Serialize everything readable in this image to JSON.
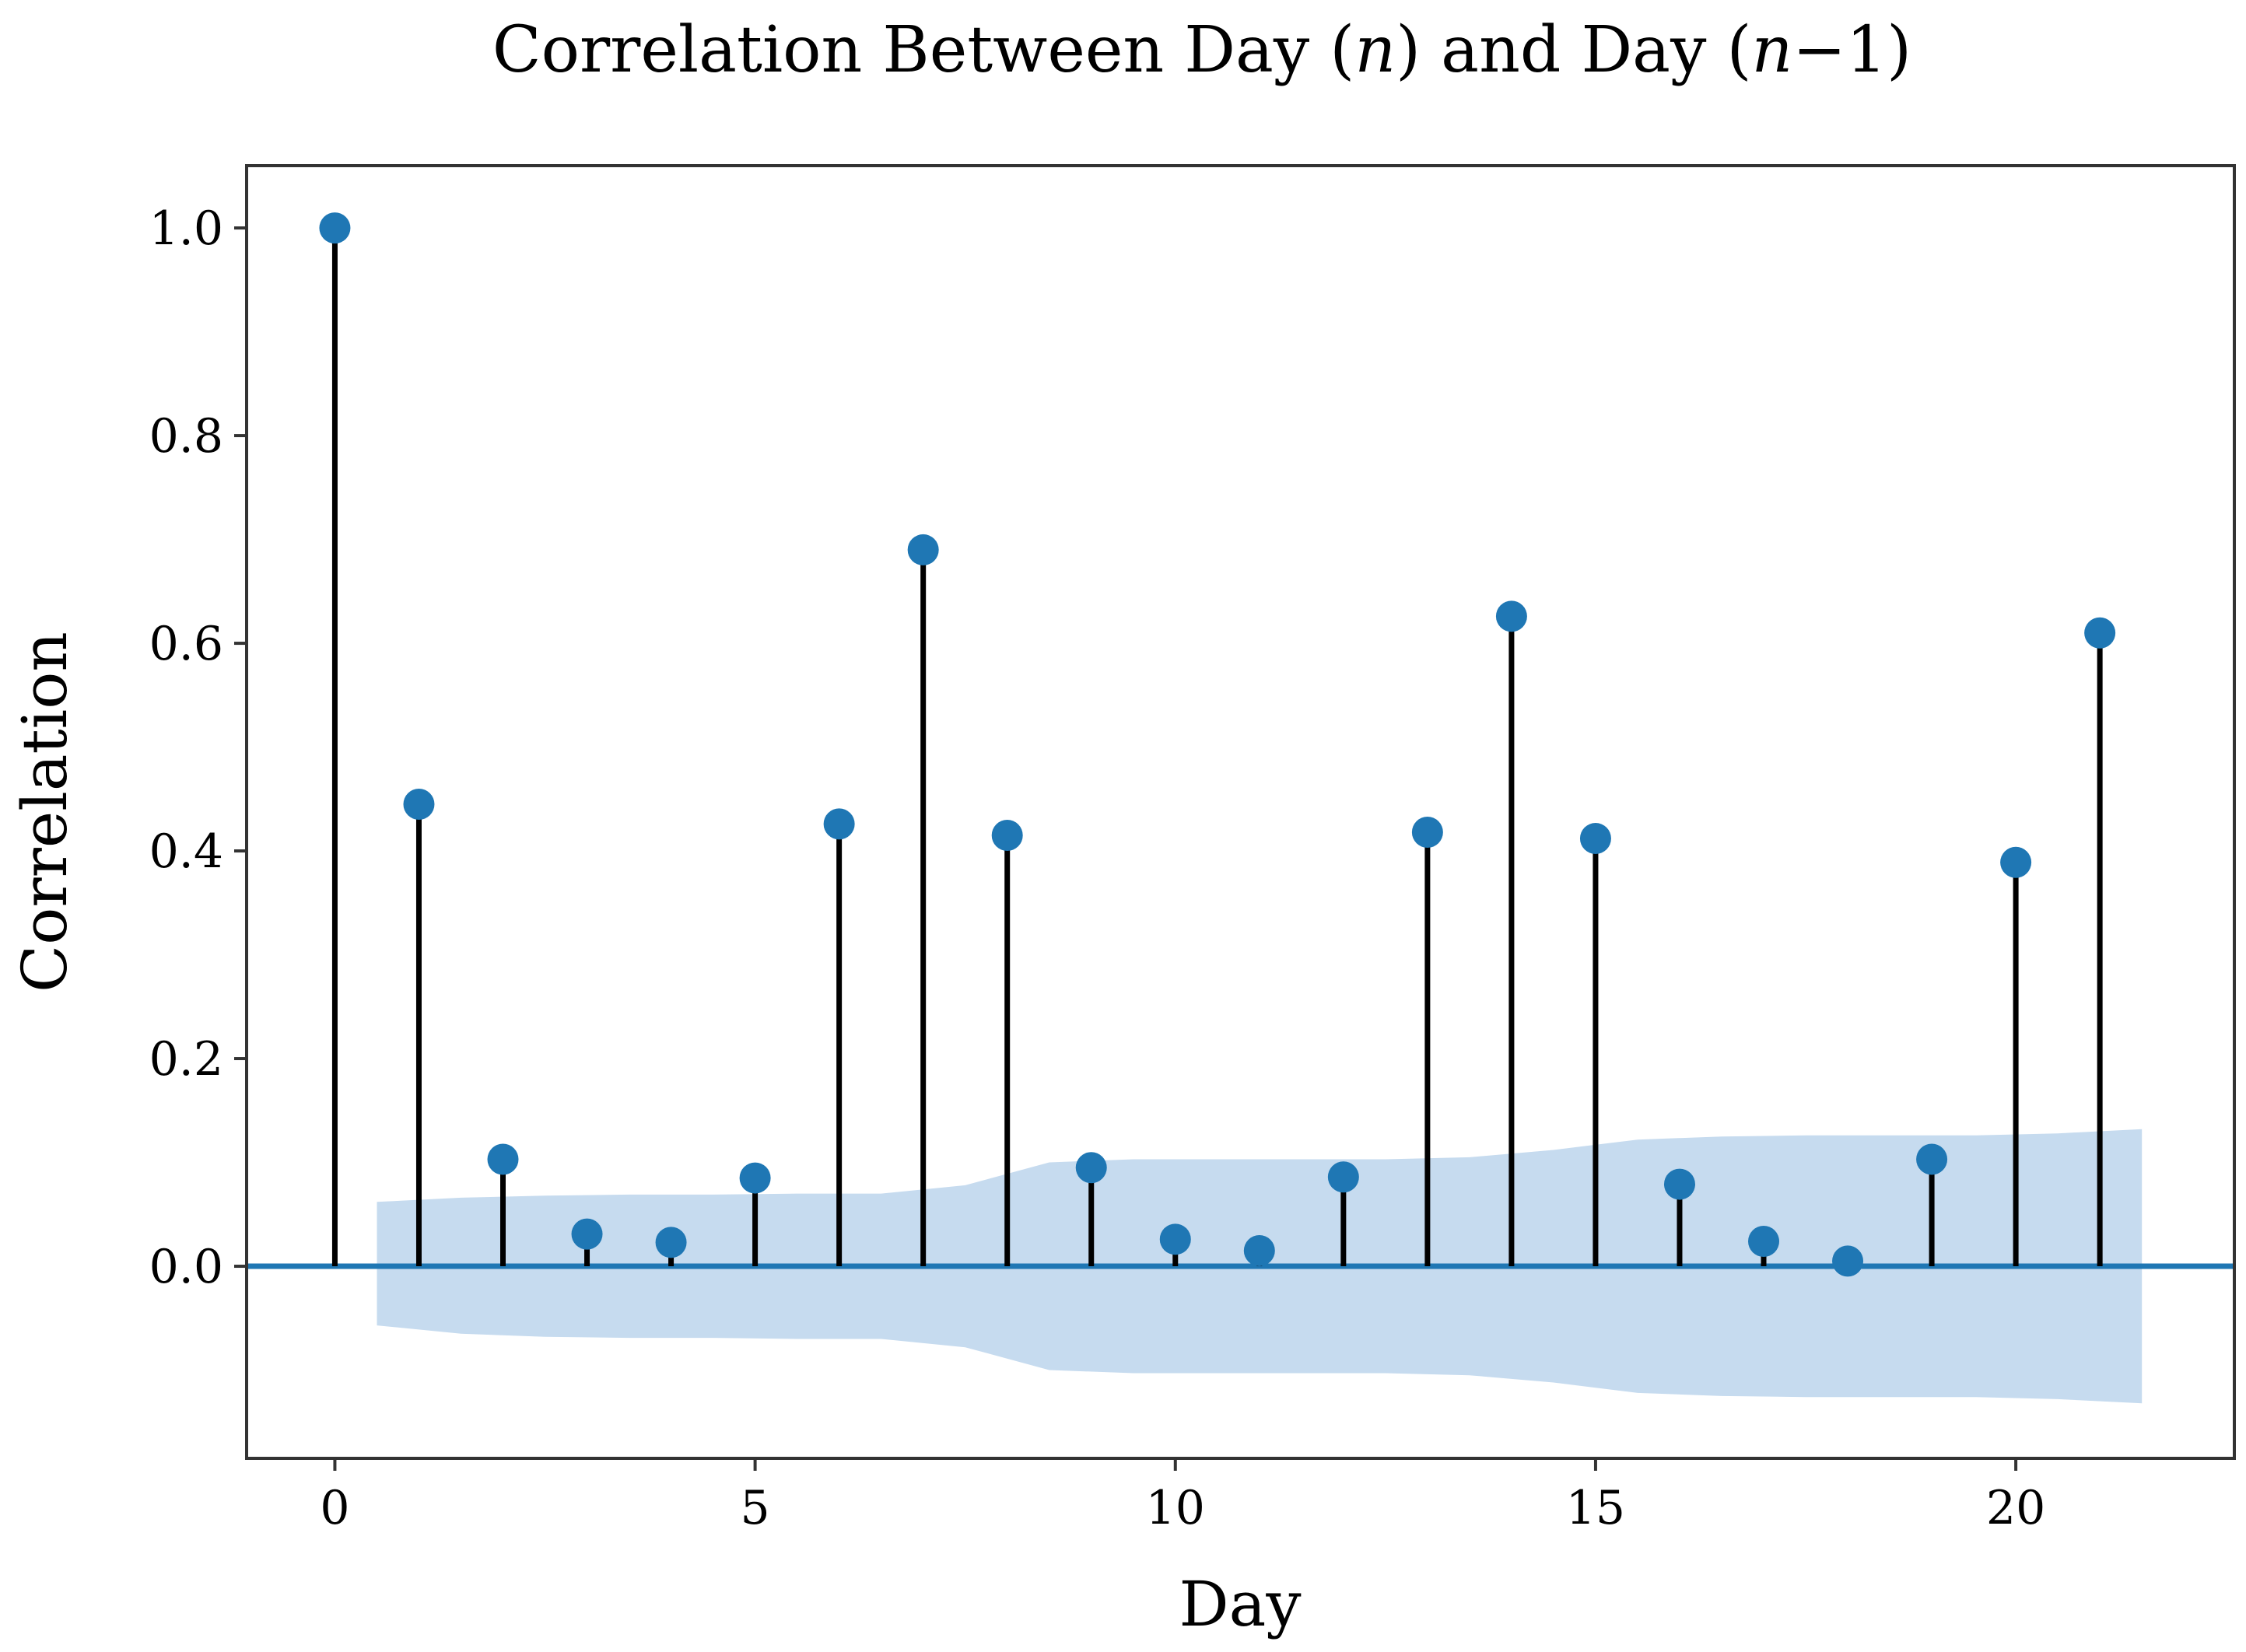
{
  "chart_data": {
    "type": "stem",
    "title_parts": [
      "Correlation Between Day (",
      "n",
      ") and Day (",
      "n",
      "−1)"
    ],
    "xlabel": "Day",
    "ylabel": "Correlation",
    "xlim": [
      -1.05,
      22.6
    ],
    "ylim": [
      -0.185,
      1.06
    ],
    "xticks": [
      0,
      5,
      10,
      15,
      20
    ],
    "xtick_labels": [
      "0",
      "5",
      "10",
      "15",
      "20"
    ],
    "yticks": [
      0.0,
      0.2,
      0.4,
      0.6,
      0.8,
      1.0
    ],
    "ytick_labels": [
      "0.0",
      "0.2",
      "0.4",
      "0.6",
      "0.8",
      "1.0"
    ],
    "lags": [
      0,
      1,
      2,
      3,
      4,
      5,
      6,
      7,
      8,
      9,
      10,
      11,
      12,
      13,
      14,
      15,
      16,
      17,
      18,
      19,
      20,
      21
    ],
    "values": [
      1.0,
      0.445,
      0.103,
      0.031,
      0.023,
      0.085,
      0.426,
      0.69,
      0.415,
      0.095,
      0.026,
      0.015,
      0.086,
      0.418,
      0.626,
      0.412,
      0.079,
      0.024,
      0.005,
      0.103,
      0.389,
      0.61
    ],
    "confidence_band": {
      "lags": [
        0.5,
        1.5,
        2.5,
        3.5,
        4.5,
        5.5,
        6.5,
        7.5,
        8.5,
        9.5,
        10.5,
        11.5,
        12.5,
        13.5,
        14.5,
        15.5,
        16.5,
        17.5,
        18.5,
        19.5,
        20.5,
        21.5
      ],
      "upper": [
        0.062,
        0.066,
        0.068,
        0.069,
        0.069,
        0.07,
        0.07,
        0.078,
        0.1,
        0.103,
        0.103,
        0.103,
        0.103,
        0.105,
        0.112,
        0.122,
        0.125,
        0.126,
        0.126,
        0.126,
        0.128,
        0.132
      ],
      "lower": [
        -0.057,
        -0.065,
        -0.068,
        -0.069,
        -0.069,
        -0.07,
        -0.07,
        -0.078,
        -0.1,
        -0.103,
        -0.103,
        -0.103,
        -0.103,
        -0.105,
        -0.112,
        -0.122,
        -0.125,
        -0.126,
        -0.126,
        -0.126,
        -0.128,
        -0.132
      ]
    },
    "colors": {
      "marker": "#1f77b4",
      "stem": "#000000",
      "baseline": "#1f77b4",
      "band": "#c6dbef",
      "frame": "#333333"
    }
  }
}
